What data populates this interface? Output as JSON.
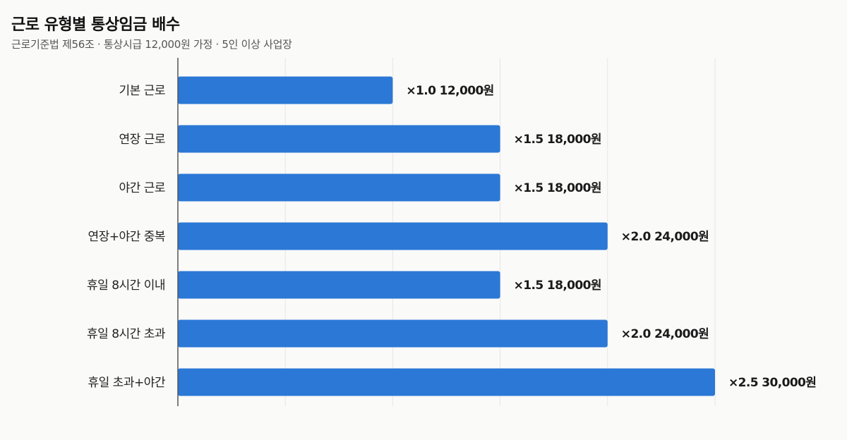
{
  "chart_data": {
    "type": "bar",
    "orientation": "horizontal",
    "title": "근로 유형별 통상임금 배수",
    "subtitle": "근로기준법 제56조 · 통상시급 12,000원 가정 · 5인 이상 사업장",
    "categories": [
      "기본 근로",
      "연장 근로",
      "야간 근로",
      "연장+야간 중복",
      "휴일 8시간 이내",
      "휴일 8시간 초과",
      "휴일 초과+야간"
    ],
    "values": [
      1.0,
      1.5,
      1.5,
      2.0,
      1.5,
      2.0,
      2.5
    ],
    "data_labels": [
      "×1.0 12,000원",
      "×1.5 18,000원",
      "×1.5 18,000원",
      "×2.0 24,000원",
      "×1.5 18,000원",
      "×2.0 24,000원",
      "×2.5 30,000원"
    ],
    "xlim": [
      0,
      2.5
    ],
    "grid": true,
    "bar_color": "#2b78d6",
    "grid_color": "#e8e6e0",
    "axis_color": "#555555"
  }
}
